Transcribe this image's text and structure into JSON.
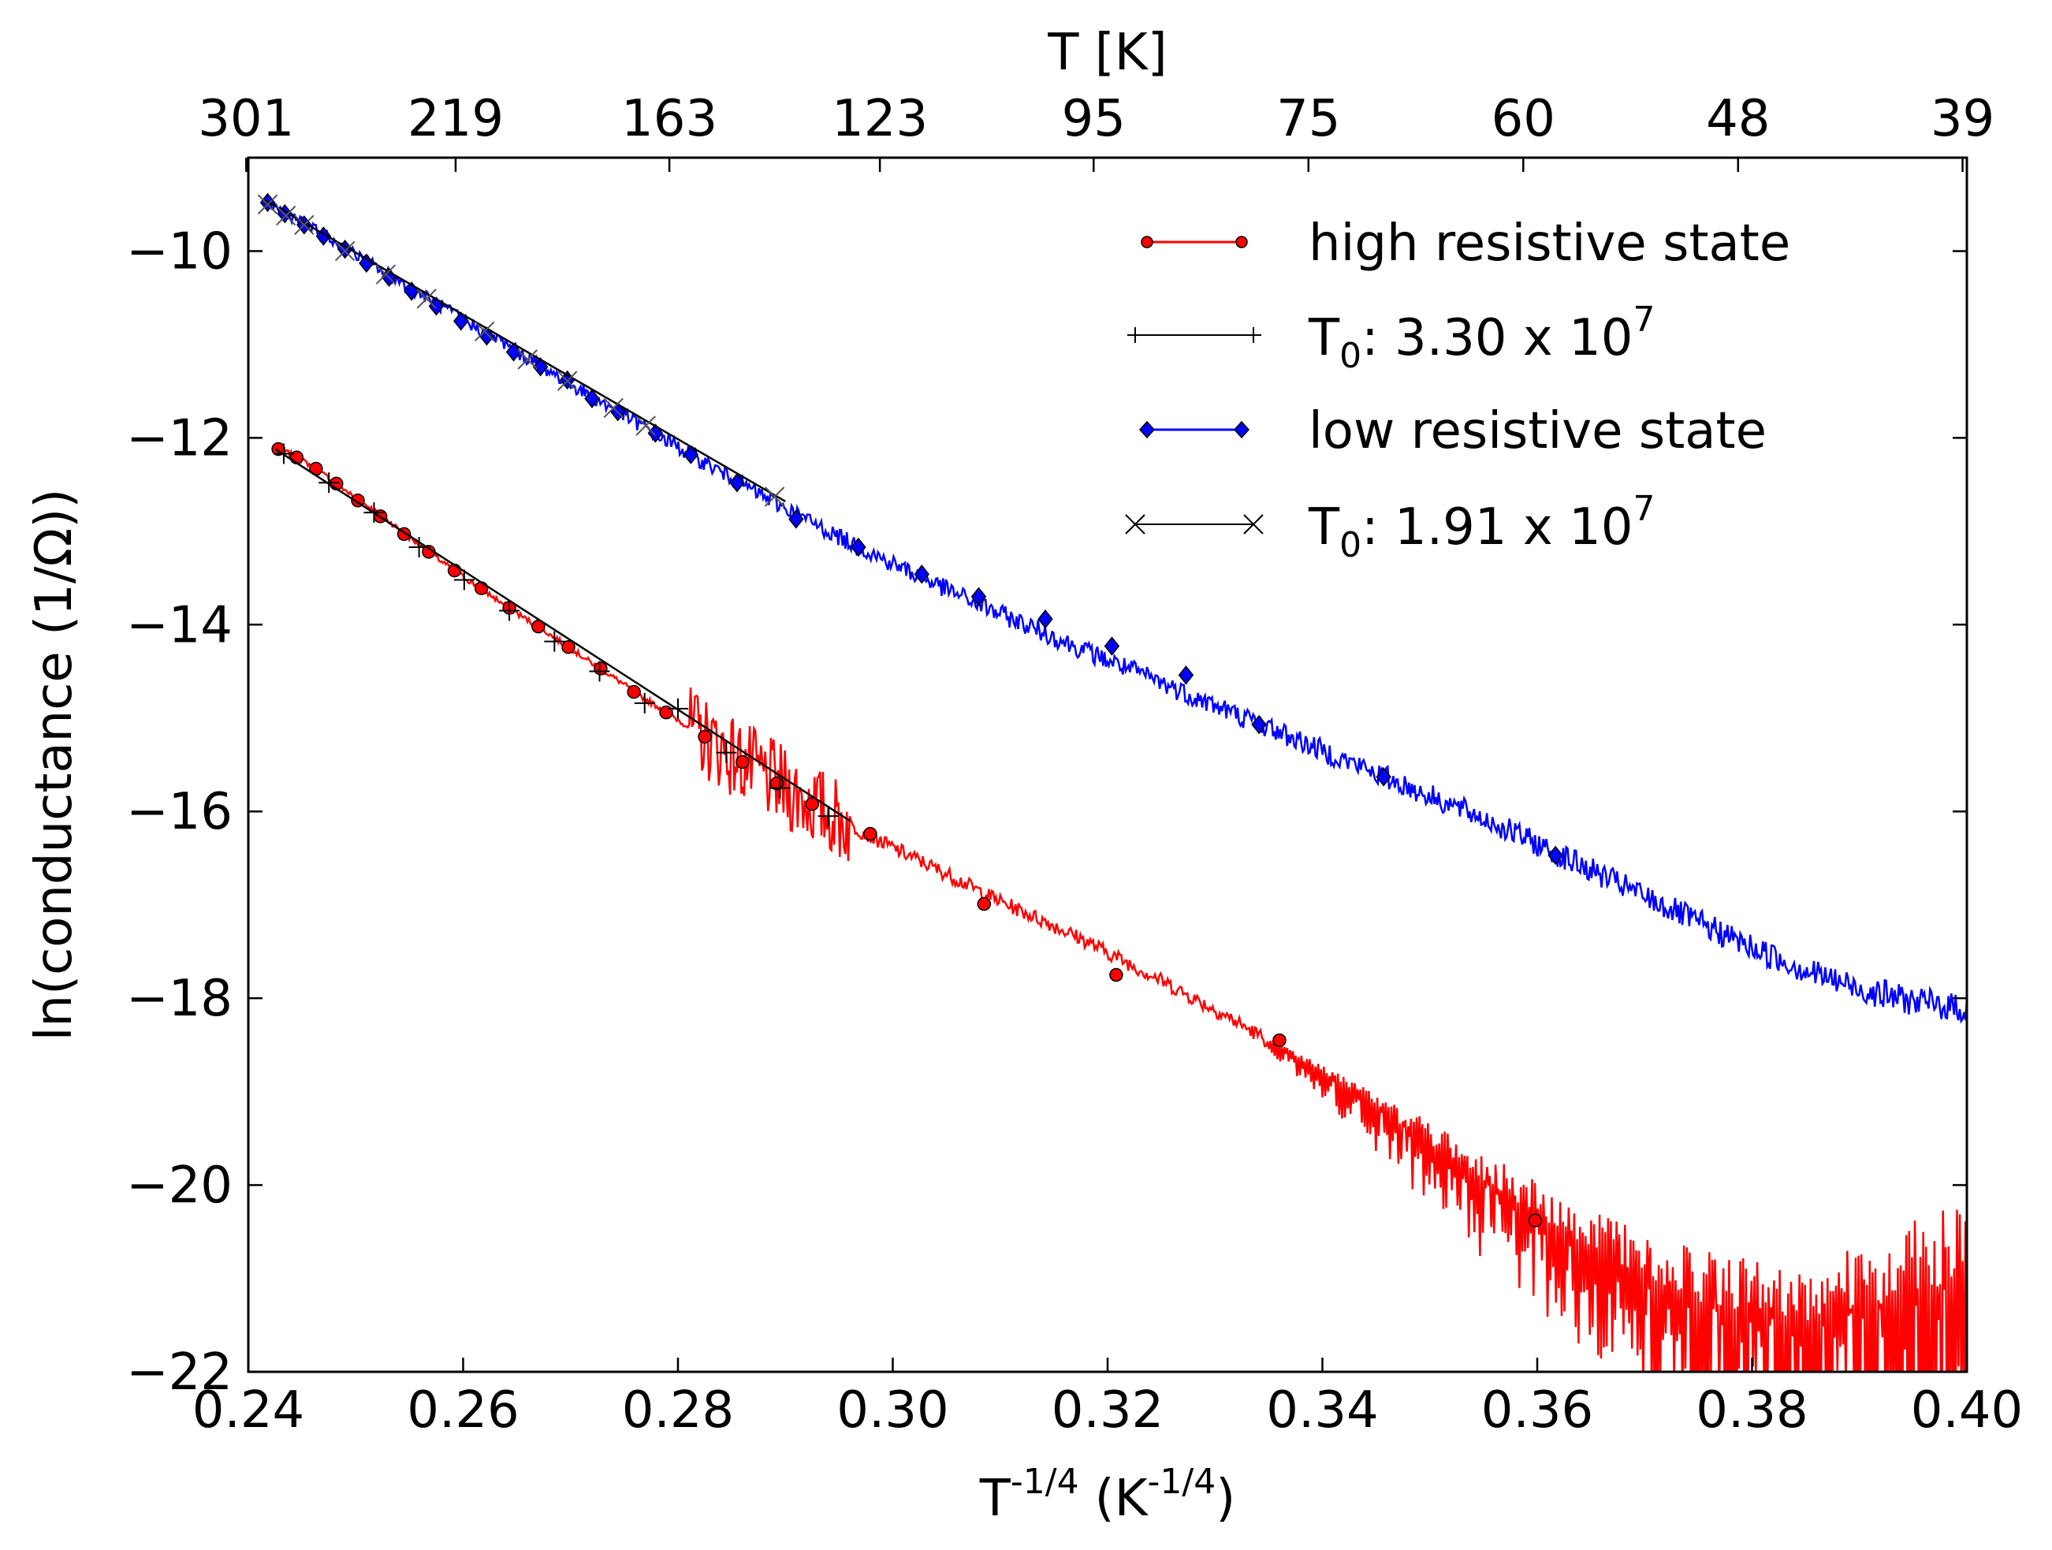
{
  "chart_data": {
    "type": "line",
    "title": "",
    "xlabel": "T",
    "xlabel_sup": "-1/4",
    "xlabel_unit_open": "(K",
    "xlabel_unit_sup": "-1/4",
    "xlabel_unit_close": ")",
    "ylabel": "ln(conductance (1/Ω))",
    "top_xlabel": "T [K]",
    "xlim": [
      0.24,
      0.4
    ],
    "ylim": [
      -22,
      -9
    ],
    "x_ticks": [
      0.24,
      0.26,
      0.28,
      0.3,
      0.32,
      0.34,
      0.36,
      0.38,
      0.4
    ],
    "x_tick_labels": [
      "0.24",
      "0.26",
      "0.28",
      "0.30",
      "0.32",
      "0.34",
      "0.36",
      "0.38",
      "0.40"
    ],
    "y_ticks": [
      -22,
      -20,
      -18,
      -16,
      -14,
      -12,
      -10
    ],
    "y_tick_labels": [
      "−22",
      "−20",
      "−18",
      "−16",
      "−14",
      "−12",
      "−10"
    ],
    "top_ticks": [
      {
        "x": 0.2398,
        "label": "301"
      },
      {
        "x": 0.2593,
        "label": "219"
      },
      {
        "x": 0.2792,
        "label": "163"
      },
      {
        "x": 0.2988,
        "label": "123"
      },
      {
        "x": 0.3187,
        "label": "95"
      },
      {
        "x": 0.3387,
        "label": "75"
      },
      {
        "x": 0.3587,
        "label": "60"
      },
      {
        "x": 0.3787,
        "label": "48"
      },
      {
        "x": 0.3996,
        "label": "39"
      }
    ],
    "legend_position": "top-right",
    "legend": [
      {
        "label": "high resistive state",
        "color": "#ff0000",
        "marker": "circle"
      },
      {
        "label": "T",
        "sub": "0",
        "value": ": 3.30 x 10",
        "exp": "7",
        "color": "#000000",
        "marker": "plus"
      },
      {
        "label": "low resistive state",
        "color": "#0000ff",
        "marker": "diamond"
      },
      {
        "label": "T",
        "sub": "0",
        "value": ": 1.91 x 10",
        "exp": "7",
        "color": "#000000",
        "marker": "x"
      }
    ],
    "series": [
      {
        "name": "high resistive state",
        "color": "#ff0000",
        "marker": "circle",
        "x": [
          0.2428,
          0.2437,
          0.2446,
          0.2456,
          0.2466,
          0.2476,
          0.2487,
          0.2498,
          0.251,
          0.2522,
          0.2534,
          0.2547,
          0.2561,
          0.2575,
          0.2589,
          0.2604,
          0.262,
          0.2636,
          0.2653,
          0.2671,
          0.2689,
          0.2707,
          0.2726,
          0.2746,
          0.2766,
          0.2787,
          0.2808,
          0.283,
          0.2852,
          0.2875,
          0.2898,
          0.2921,
          0.2944,
          0.2967,
          0.299,
          0.3013,
          0.3036,
          0.3059,
          0.3082,
          0.3105,
          0.314,
          0.3175,
          0.321,
          0.3245,
          0.328,
          0.3315,
          0.335,
          0.3385,
          0.342,
          0.3455,
          0.349,
          0.3525,
          0.356,
          0.36,
          0.365,
          0.37,
          0.375,
          0.38,
          0.385,
          0.39,
          0.395,
          0.4
        ],
        "y": [
          -12.12,
          -12.16,
          -12.22,
          -12.28,
          -12.36,
          -12.44,
          -12.53,
          -12.63,
          -12.72,
          -12.82,
          -12.92,
          -13.04,
          -13.16,
          -13.28,
          -13.4,
          -13.52,
          -13.64,
          -13.77,
          -13.9,
          -14.03,
          -14.17,
          -14.31,
          -14.46,
          -14.61,
          -14.77,
          -14.92,
          -15.08,
          -15.25,
          -15.41,
          -15.58,
          -15.74,
          -15.9,
          -16.05,
          -16.19,
          -16.33,
          -16.46,
          -16.59,
          -16.72,
          -16.86,
          -16.99,
          -17.17,
          -17.36,
          -17.57,
          -17.78,
          -18.0,
          -18.22,
          -18.46,
          -18.7,
          -18.96,
          -19.21,
          -19.48,
          -19.75,
          -20.03,
          -20.33,
          -20.7,
          -21.0,
          -21.25,
          -21.4,
          -21.45,
          -21.35,
          -21.2,
          -21.05
        ],
        "markers": [
          [
            0.2428,
            -12.12
          ],
          [
            0.2445,
            -12.21
          ],
          [
            0.2463,
            -12.33
          ],
          [
            0.2482,
            -12.49
          ],
          [
            0.2502,
            -12.67
          ],
          [
            0.2523,
            -12.84
          ],
          [
            0.2545,
            -13.03
          ],
          [
            0.2568,
            -13.22
          ],
          [
            0.2592,
            -13.42
          ],
          [
            0.2617,
            -13.61
          ],
          [
            0.2643,
            -13.82
          ],
          [
            0.267,
            -14.02
          ],
          [
            0.2698,
            -14.24
          ],
          [
            0.2728,
            -14.47
          ],
          [
            0.2759,
            -14.72
          ],
          [
            0.2789,
            -14.94
          ],
          [
            0.2825,
            -15.2
          ],
          [
            0.286,
            -15.47
          ],
          [
            0.2892,
            -15.7
          ],
          [
            0.2925,
            -15.92
          ],
          [
            0.2979,
            -16.24
          ],
          [
            0.3085,
            -16.99
          ],
          [
            0.3208,
            -17.75
          ],
          [
            0.336,
            -18.45
          ],
          [
            0.3598,
            -20.38
          ]
        ]
      },
      {
        "name": "T0: 3.30 x 10^7 fit",
        "color": "#000000",
        "marker": "plus",
        "x": [
          0.2425,
          0.296
        ],
        "y": [
          -12.12,
          -16.1
        ],
        "markers": [
          [
            0.2433,
            -12.17
          ],
          [
            0.2475,
            -12.48
          ],
          [
            0.2517,
            -12.8
          ],
          [
            0.2559,
            -13.17
          ],
          [
            0.2601,
            -13.52
          ],
          [
            0.2643,
            -13.85
          ],
          [
            0.2685,
            -14.18
          ],
          [
            0.2727,
            -14.5
          ],
          [
            0.2769,
            -14.84
          ],
          [
            0.28,
            -14.9
          ],
          [
            0.2845,
            -15.37
          ],
          [
            0.2895,
            -15.75
          ],
          [
            0.294,
            -16.05
          ]
        ]
      },
      {
        "name": "low resistive state",
        "color": "#0000ff",
        "marker": "diamond",
        "x": [
          0.2418,
          0.2436,
          0.2455,
          0.2474,
          0.2494,
          0.2515,
          0.2536,
          0.2558,
          0.2581,
          0.2604,
          0.2628,
          0.2652,
          0.2677,
          0.2703,
          0.2729,
          0.2756,
          0.2784,
          0.2812,
          0.2841,
          0.2871,
          0.2901,
          0.2932,
          0.2963,
          0.2995,
          0.3028,
          0.3061,
          0.3095,
          0.313,
          0.3165,
          0.32,
          0.324,
          0.328,
          0.332,
          0.336,
          0.34,
          0.344,
          0.348,
          0.352,
          0.356,
          0.36,
          0.365,
          0.37,
          0.375,
          0.38,
          0.385,
          0.39,
          0.395,
          0.4
        ],
        "y": [
          -9.48,
          -9.6,
          -9.73,
          -9.86,
          -10.0,
          -10.14,
          -10.29,
          -10.44,
          -10.6,
          -10.76,
          -10.92,
          -11.09,
          -11.26,
          -11.44,
          -11.62,
          -11.8,
          -11.99,
          -12.18,
          -12.37,
          -12.57,
          -12.76,
          -12.95,
          -13.14,
          -13.32,
          -13.5,
          -13.68,
          -13.86,
          -14.03,
          -14.21,
          -14.38,
          -14.57,
          -14.77,
          -14.96,
          -15.15,
          -15.35,
          -15.54,
          -15.74,
          -15.93,
          -16.13,
          -16.35,
          -16.63,
          -16.91,
          -17.19,
          -17.46,
          -17.7,
          -17.9,
          -18.03,
          -18.12
        ],
        "markers": [
          [
            0.2418,
            -9.48
          ],
          [
            0.2434,
            -9.6
          ],
          [
            0.2452,
            -9.72
          ],
          [
            0.247,
            -9.84
          ],
          [
            0.249,
            -9.98
          ],
          [
            0.251,
            -10.13
          ],
          [
            0.2531,
            -10.28
          ],
          [
            0.2552,
            -10.43
          ],
          [
            0.2575,
            -10.59
          ],
          [
            0.2598,
            -10.75
          ],
          [
            0.2622,
            -10.91
          ],
          [
            0.2647,
            -11.08
          ],
          [
            0.2672,
            -11.24
          ],
          [
            0.2697,
            -11.38
          ],
          [
            0.272,
            -11.58
          ],
          [
            0.2744,
            -11.72
          ],
          [
            0.2779,
            -11.95
          ],
          [
            0.2812,
            -12.18
          ],
          [
            0.2855,
            -12.48
          ],
          [
            0.291,
            -12.87
          ],
          [
            0.2968,
            -13.17
          ],
          [
            0.3027,
            -13.46
          ],
          [
            0.308,
            -13.7
          ],
          [
            0.3142,
            -13.94
          ],
          [
            0.3204,
            -14.23
          ],
          [
            0.3273,
            -14.54
          ],
          [
            0.3341,
            -15.07
          ],
          [
            0.3457,
            -15.63
          ],
          [
            0.3617,
            -16.47
          ]
        ]
      },
      {
        "name": "T0: 1.91 x 10^7 fit",
        "color": "#000000",
        "marker": "x",
        "x": [
          0.2415,
          0.29
        ],
        "y": [
          -9.45,
          -12.68
        ],
        "markers": [
          [
            0.2418,
            -9.5
          ],
          [
            0.2435,
            -9.62
          ],
          [
            0.2452,
            -9.72
          ],
          [
            0.249,
            -10.0
          ],
          [
            0.2528,
            -10.25
          ],
          [
            0.2566,
            -10.51
          ],
          [
            0.262,
            -10.86
          ],
          [
            0.266,
            -11.16
          ],
          [
            0.2697,
            -11.39
          ],
          [
            0.274,
            -11.68
          ],
          [
            0.277,
            -11.87
          ],
          [
            0.289,
            -12.63
          ]
        ]
      }
    ]
  }
}
